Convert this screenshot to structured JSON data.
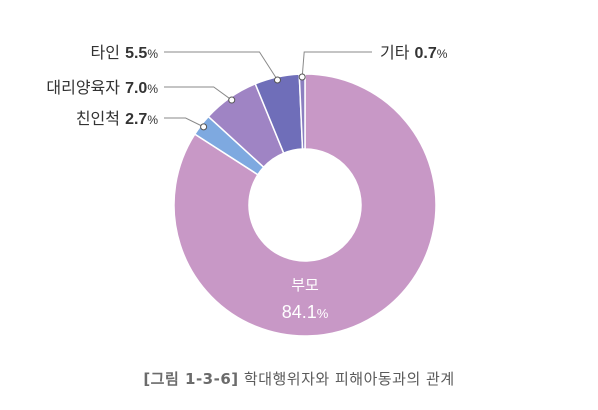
{
  "chart_data": {
    "type": "pie",
    "style": "donut",
    "categories": [
      "부모",
      "친인척",
      "대리양육자",
      "타인",
      "기타"
    ],
    "values": [
      84.1,
      2.7,
      7.0,
      5.5,
      0.7
    ],
    "unit": "%",
    "colors": [
      "#c898c6",
      "#7ea9e0",
      "#9f84c4",
      "#6f6eb9",
      "#8c7fc0"
    ],
    "label_text": [
      "84.1",
      "2.7",
      "7.0",
      "5.5",
      "0.7"
    ]
  },
  "caption": {
    "label": "[그림 1-3-6]",
    "text": "학대행위자와 피해아동과의 관계"
  },
  "colors": {
    "leader_line": "#8a8a8a",
    "label_text": "#333333",
    "caption_text": "#5b5b5b"
  }
}
